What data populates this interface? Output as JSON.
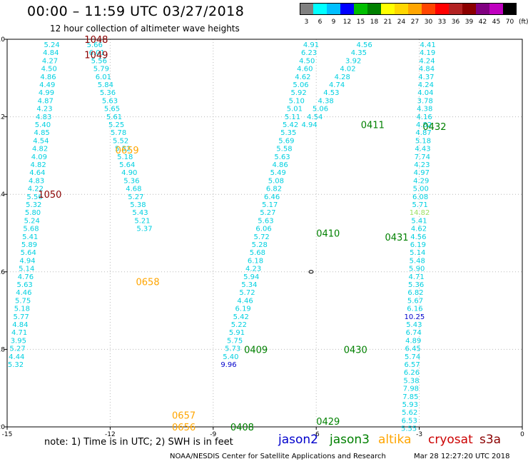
{
  "header": {
    "title": "00:00 – 11:59 UTC 03/27/2018",
    "subtitle": "12 hour collection of altimeter wave heights"
  },
  "colorbar": {
    "unit_label": "(ft)",
    "colors": [
      "#808080",
      "#00ffff",
      "#00bfff",
      "#0000ff",
      "#00bf00",
      "#008000",
      "#ffff00",
      "#ffd700",
      "#ffa500",
      "#ff4500",
      "#ff0000",
      "#b22222",
      "#8b0000",
      "#800080",
      "#bf00bf",
      "#000000"
    ],
    "labels": [
      "3",
      "6",
      "9",
      "12",
      "15",
      "18",
      "21",
      "24",
      "27",
      "30",
      "33",
      "36",
      "39",
      "42",
      "45",
      "70"
    ]
  },
  "footer": {
    "note": "note:  1) Time is in UTC;  2) SWH is in feet",
    "credit": "NOAA/NESDIS Center for Satellite Applications and Research",
    "timestamp": "Mar 28 12:27:20 UTC 2018"
  },
  "legend": [
    {
      "name": "jason2",
      "color": "#0000cc"
    },
    {
      "name": "jason3",
      "color": "#008000"
    },
    {
      "name": "altika",
      "color": "#ffa500"
    },
    {
      "name": "cryosat",
      "color": "#cc0000"
    },
    {
      "name": "s3a",
      "color": "#8b0000"
    }
  ],
  "chart_data": {
    "type": "scatter",
    "title": "00:00 – 11:59 UTC 03/27/2018",
    "subtitle": "12 hour collection of altimeter wave heights",
    "xlabel": "",
    "ylabel": "",
    "xlim": [
      -15,
      0
    ],
    "ylim": [
      -20,
      -10
    ],
    "x_ticks": [
      -15,
      -12,
      -9,
      -6,
      -3,
      0
    ],
    "y_ticks": [
      -10,
      -12,
      -14,
      -16,
      -18,
      -20
    ],
    "grid": true,
    "value_color": "#00d0e0",
    "tracks": [
      {
        "name": "track-1",
        "x0": -13.7,
        "x1": -14.75,
        "values": [
          "5.24",
          "4.84",
          "4.27",
          "4.50",
          "4.86",
          "4.49",
          "4.99",
          "4.87",
          "4.23",
          "4.83",
          "5.40",
          "4.85",
          "4.54",
          "4.82",
          "4.09",
          "4.82",
          "4.64",
          "4.83",
          "4.22",
          "5.56",
          "5.32",
          "5.80",
          "5.24",
          "5.68",
          "5.41",
          "5.89",
          "5.64",
          "4.94",
          "5.14",
          "4.76",
          "5.63",
          "4.46",
          "5.75",
          "5.18",
          "5.77",
          "4.84",
          "4.71",
          "3.95",
          "5.27",
          "4.44",
          "5.32"
        ]
      },
      {
        "name": "track-2",
        "x0": -12.45,
        "x1": -11.0,
        "values": [
          "5.66",
          "6.01",
          "5.56",
          "5.79",
          "6.01",
          "5.84",
          "5.36",
          "5.63",
          "5.65",
          "5.61",
          "5.25",
          "5.78",
          "5.52",
          "5.52",
          "5.18",
          "5.64",
          "4.90",
          "5.36",
          "4.68",
          "5.27",
          "5.38",
          "5.43",
          "5.21",
          "5.37"
        ]
      },
      {
        "name": "track-3",
        "x0": -6.15,
        "x1": -8.55,
        "values": [
          "4.91",
          "6.23",
          "4.50",
          "4.60",
          "4.62",
          "5.06",
          "5.92",
          "5.10",
          "5.01",
          "5.11",
          "5.42",
          "5.35",
          "5.69",
          "5.58",
          "5.63",
          "4.86",
          "5.49",
          "5.08",
          "6.82",
          "6.46",
          "5.17",
          "5.27",
          "5.63",
          "6.06",
          "5.72",
          "5.28",
          "5.68",
          "6.18",
          "4.23",
          "5.94",
          "5.34",
          "5.72",
          "4.46",
          "6.19",
          "5.42",
          "5.22",
          "5.91",
          "5.75",
          "5.73",
          "5.40",
          "9.96"
        ]
      },
      {
        "name": "track-4",
        "x0": -4.6,
        "x1": -6.2,
        "values": [
          "4.56",
          "4.35",
          "3.92",
          "4.02",
          "4.28",
          "4.74",
          "4.53",
          "4.38",
          "5.06",
          "4.54",
          "4.94"
        ]
      },
      {
        "name": "track-5",
        "x0": -2.75,
        "x1": -3.3,
        "values": [
          "4.41",
          "4.19",
          "4.24",
          "4.84",
          "4.37",
          "4.24",
          "4.04",
          "3.78",
          "4.38",
          "4.16",
          "4.82",
          "4.87",
          "5.18",
          "4.43",
          "7.74",
          "4.23",
          "4.97",
          "4.29",
          "5.00",
          "6.08",
          "5.71",
          "14.82",
          "5.41",
          "4.62",
          "4.56",
          "6.19",
          "5.14",
          "5.48",
          "5.90",
          "4.71",
          "5.36",
          "6.82",
          "5.67",
          "6.16",
          "10.25",
          "5.43",
          "6.74",
          "4.89",
          "6.45",
          "5.74",
          "6.57",
          "6.26",
          "5.38",
          "7.98",
          "7.85",
          "5.93",
          "5.62",
          "6.53",
          "5.55"
        ]
      }
    ],
    "pass_labels": [
      {
        "text": "1048",
        "x": -12.75,
        "y": -10.0,
        "color": "#8b0000"
      },
      {
        "text": "1049",
        "x": -12.75,
        "y": -10.4,
        "color": "#8b0000"
      },
      {
        "text": "1050",
        "x": -14.1,
        "y": -14.0,
        "color": "#8b0000"
      },
      {
        "text": "0659",
        "x": -11.85,
        "y": -12.85,
        "color": "#ffa500"
      },
      {
        "text": "0658",
        "x": -11.25,
        "y": -16.25,
        "color": "#ffa500"
      },
      {
        "text": "0657",
        "x": -10.2,
        "y": -19.7,
        "color": "#ffa500"
      },
      {
        "text": "0656",
        "x": -10.2,
        "y": -20.0,
        "color": "#ffa500"
      },
      {
        "text": "0411",
        "x": -4.7,
        "y": -12.2,
        "color": "#008000"
      },
      {
        "text": "0432",
        "x": -2.9,
        "y": -12.25,
        "color": "#008000"
      },
      {
        "text": "0410",
        "x": -6.0,
        "y": -15.0,
        "color": "#008000"
      },
      {
        "text": "0431",
        "x": -4.0,
        "y": -15.1,
        "color": "#008000"
      },
      {
        "text": "0409",
        "x": -8.1,
        "y": -18.0,
        "color": "#008000"
      },
      {
        "text": "0430",
        "x": -5.2,
        "y": -18.0,
        "color": "#008000"
      },
      {
        "text": "0408",
        "x": -8.5,
        "y": -20.0,
        "color": "#008000"
      },
      {
        "text": "0429",
        "x": -6.0,
        "y": -19.85,
        "color": "#008000"
      }
    ]
  }
}
